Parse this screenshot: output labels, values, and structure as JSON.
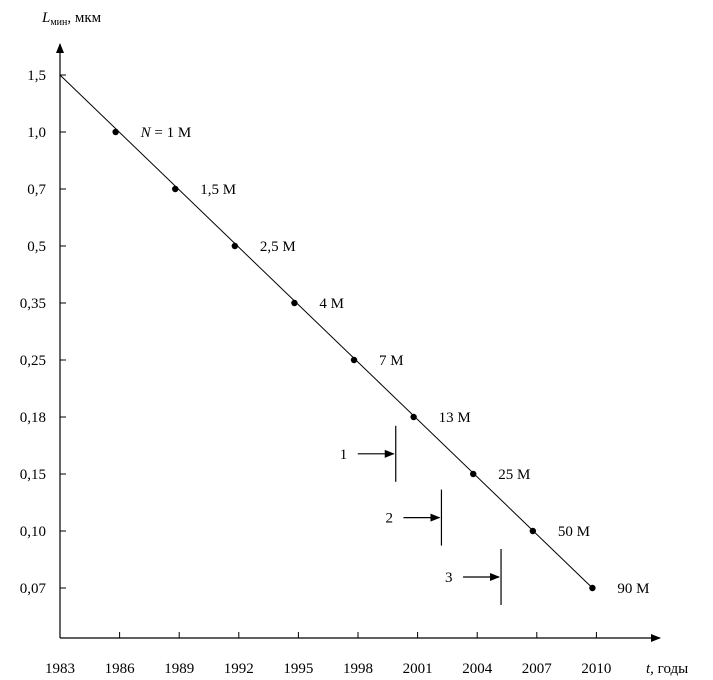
{
  "chart_data": {
    "type": "scatter",
    "title": "",
    "ylabel": {
      "symbol": "L",
      "sub": "мин",
      "unit": ", мкм"
    },
    "xlabel": {
      "symbol": "t",
      "unit": ", годы"
    },
    "x_ticks": [
      "1983",
      "1986",
      "1989",
      "1992",
      "1995",
      "1998",
      "2001",
      "2004",
      "2007",
      "2010"
    ],
    "y_ticks": [
      "1,5",
      "1,0",
      "0,7",
      "0,5",
      "0,35",
      "0,25",
      "0,18",
      "0,15",
      "0,10",
      "0,07"
    ],
    "series": [
      {
        "x": [
          1985.8,
          1988.8,
          1991.8,
          1994.8,
          1997.8,
          2000.8,
          2003.8,
          2006.8,
          2009.8
        ],
        "y": [
          "1,0",
          "0,7",
          "0,5",
          "0,35",
          "0,25",
          "0,18",
          "0,15",
          "0,10",
          "0,07"
        ],
        "labels": [
          "N = 1 M",
          "1,5 M",
          "2,5 M",
          "4 M",
          "7 M",
          "13 M",
          "25 M",
          "50 M",
          "90 M"
        ]
      }
    ],
    "trend_line": {
      "from": [
        1983,
        "1,5"
      ],
      "to": [
        2009.8,
        "0,07"
      ]
    },
    "markers": [
      {
        "label": "1",
        "x": 1999.9,
        "y": "0,16"
      },
      {
        "label": "2",
        "x": 2002.2,
        "y": "0,11"
      },
      {
        "label": "3",
        "x": 2005.2,
        "y": "0,075"
      }
    ],
    "grid": false,
    "legend": "none"
  }
}
